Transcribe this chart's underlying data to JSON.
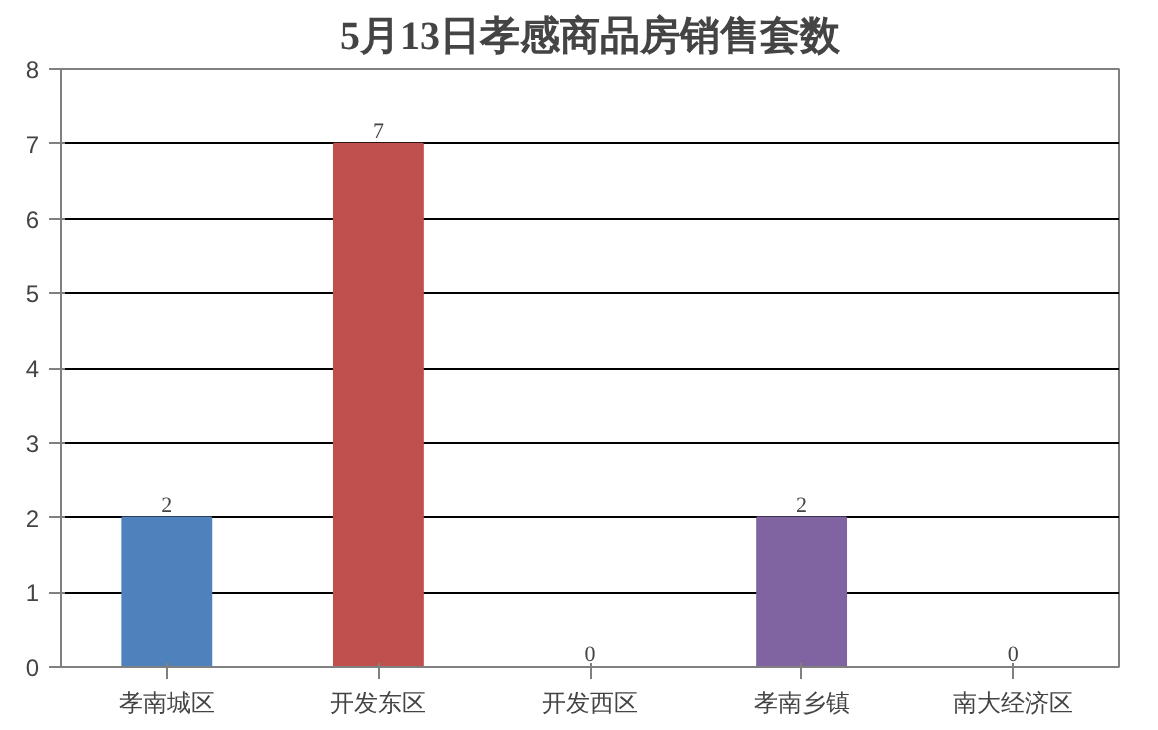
{
  "chart_data": {
    "type": "bar",
    "title": "5月13日孝感商品房销售套数",
    "categories": [
      "孝南城区",
      "开发东区",
      "开发西区",
      "孝南乡镇",
      "南大经济区"
    ],
    "values": [
      2,
      7,
      0,
      2,
      0
    ],
    "colors": [
      "#4f81bd",
      "#c0504d",
      "#9bbb59",
      "#8064a2",
      "#4bacc6"
    ],
    "ylim": [
      0,
      8
    ],
    "yticks": [
      0,
      1,
      2,
      3,
      4,
      5,
      6,
      7,
      8
    ],
    "grid": "y",
    "data_labels": true
  }
}
